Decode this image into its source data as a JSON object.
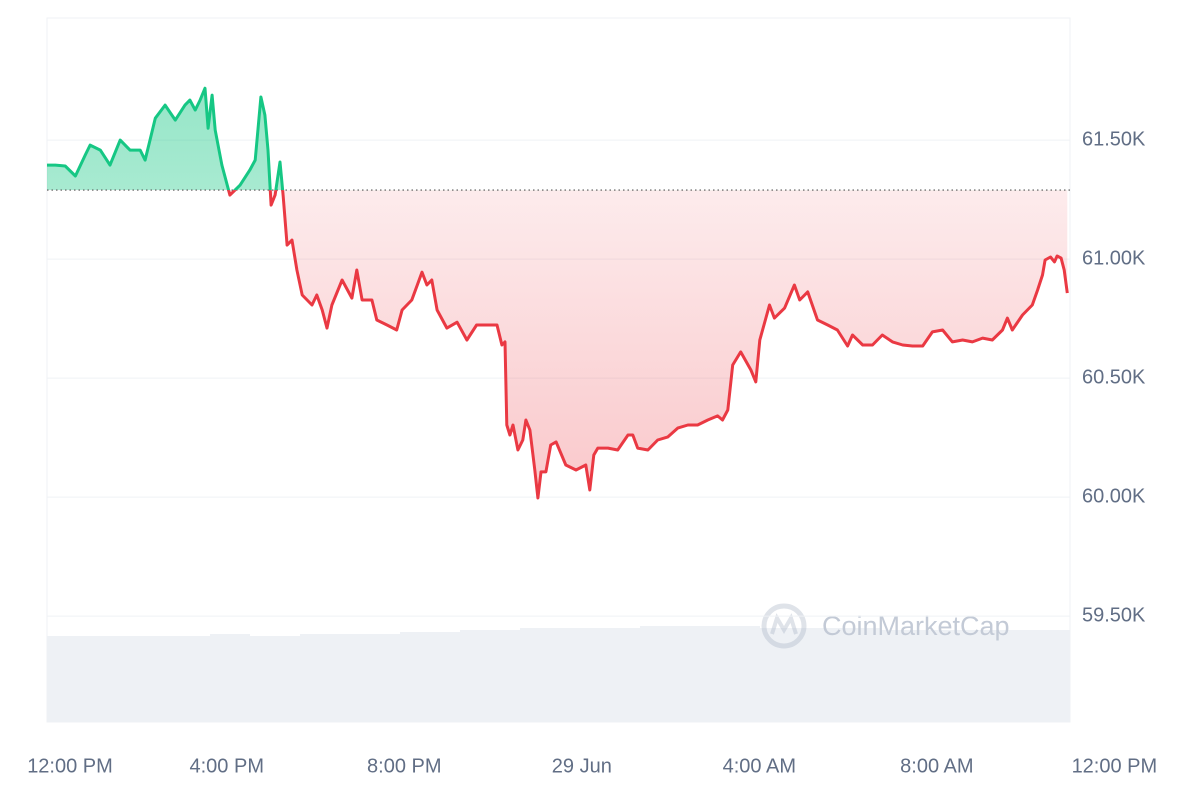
{
  "chart_data": {
    "type": "line",
    "x": [
      -0.05,
      0.14,
      0.36,
      0.59,
      0.81,
      0.92,
      1.15,
      1.37,
      1.6,
      1.82,
      2.05,
      2.16,
      2.27,
      2.39,
      2.61,
      2.84,
      3.06,
      3.17,
      3.29,
      3.4,
      3.51,
      3.58,
      3.67,
      3.74,
      3.89,
      4.07,
      4.3,
      4.52,
      4.64,
      4.77,
      4.86,
      4.93,
      5.0,
      5.09,
      5.2,
      5.27,
      5.36,
      5.47,
      5.58,
      5.7,
      5.92,
      6.03,
      6.15,
      6.26,
      6.37,
      6.6,
      6.82,
      6.93,
      7.05,
      7.27,
      7.38,
      7.61,
      7.83,
      7.95,
      8.17,
      8.4,
      8.51,
      8.62,
      8.74,
      8.96,
      9.19,
      9.41,
      9.63,
      9.86,
      10.09,
      10.2,
      10.27,
      10.31,
      10.38,
      10.45,
      10.56,
      10.67,
      10.74,
      10.83,
      10.94,
      11.01,
      11.08,
      11.19,
      11.3,
      11.42,
      11.64,
      11.87,
      12.09,
      12.18,
      12.27,
      12.36,
      12.59,
      12.81,
      13.04,
      13.15,
      13.26,
      13.49,
      13.71,
      13.94,
      14.16,
      14.39,
      14.61,
      14.84,
      15.06,
      15.17,
      15.29,
      15.4,
      15.58,
      15.81,
      15.92,
      16.01,
      16.23,
      16.34,
      16.57,
      16.79,
      16.91,
      17.09,
      17.31,
      17.54,
      17.76,
      17.99,
      18.1,
      18.33,
      18.55,
      18.77,
      19.0,
      19.23,
      19.45,
      19.68,
      19.9,
      20.13,
      20.35,
      20.58,
      20.8,
      21.03,
      21.25,
      21.48,
      21.59,
      21.7,
      21.93,
      22.15,
      22.27,
      22.38,
      22.44,
      22.56,
      22.65,
      22.71,
      22.8,
      22.87,
      22.94
    ],
    "values": [
      61395,
      61395,
      61391,
      61349,
      61437,
      61479,
      61458,
      61395,
      61500,
      61458,
      61458,
      61416,
      61500,
      61592,
      61647,
      61584,
      61647,
      61668,
      61626,
      61668,
      61718,
      61550,
      61689,
      61542,
      61395,
      61269,
      61311,
      61374,
      61416,
      61681,
      61605,
      61458,
      61227,
      61269,
      61408,
      61269,
      61059,
      61080,
      60954,
      60849,
      60807,
      60849,
      60786,
      60710,
      60807,
      60912,
      60836,
      60954,
      60828,
      60828,
      60744,
      60723,
      60702,
      60786,
      60828,
      60945,
      60891,
      60912,
      60786,
      60710,
      60735,
      60660,
      60723,
      60723,
      60723,
      60639,
      60652,
      60303,
      60261,
      60303,
      60198,
      60240,
      60324,
      60282,
      60114,
      59996,
      60106,
      60106,
      60219,
      60232,
      60135,
      60114,
      60135,
      60030,
      60177,
      60206,
      60206,
      60198,
      60261,
      60261,
      60206,
      60198,
      60240,
      60253,
      60290,
      60303,
      60303,
      60324,
      60341,
      60324,
      60366,
      60555,
      60610,
      60534,
      60484,
      60660,
      60807,
      60752,
      60794,
      60891,
      60828,
      60862,
      60744,
      60723,
      60702,
      60635,
      60681,
      60639,
      60639,
      60681,
      60652,
      60639,
      60635,
      60635,
      60694,
      60702,
      60652,
      60660,
      60652,
      60668,
      60660,
      60702,
      60752,
      60702,
      60765,
      60807,
      60870,
      60933,
      60996,
      61009,
      60988,
      61013,
      61004,
      60954,
      60857
    ],
    "reference_value": 61290,
    "up_color": "#16c784",
    "down_color": "#ea3943",
    "xlim": [
      -0.05,
      23.0
    ],
    "xticks": [
      {
        "value": 0,
        "label": "12:00 PM"
      },
      {
        "value": 4,
        "label": "4:00 PM"
      },
      {
        "value": 8,
        "label": "8:00 PM"
      },
      {
        "value": 12,
        "label": "29 Jun"
      },
      {
        "value": 16,
        "label": "4:00 AM"
      },
      {
        "value": 20,
        "label": "8:00 AM"
      },
      {
        "value": 24,
        "label": "12:00 PM"
      }
    ],
    "ylim": [
      59055,
      62013
    ],
    "yticks": [
      {
        "value": 59500,
        "label": "59.50K"
      },
      {
        "value": 60000,
        "label": "60.00K"
      },
      {
        "value": 60500,
        "label": "60.50K"
      },
      {
        "value": 61000,
        "label": "61.00K"
      },
      {
        "value": 61500,
        "label": "61.50K"
      }
    ],
    "grid": true,
    "watermark": "CoinMarketCap"
  }
}
